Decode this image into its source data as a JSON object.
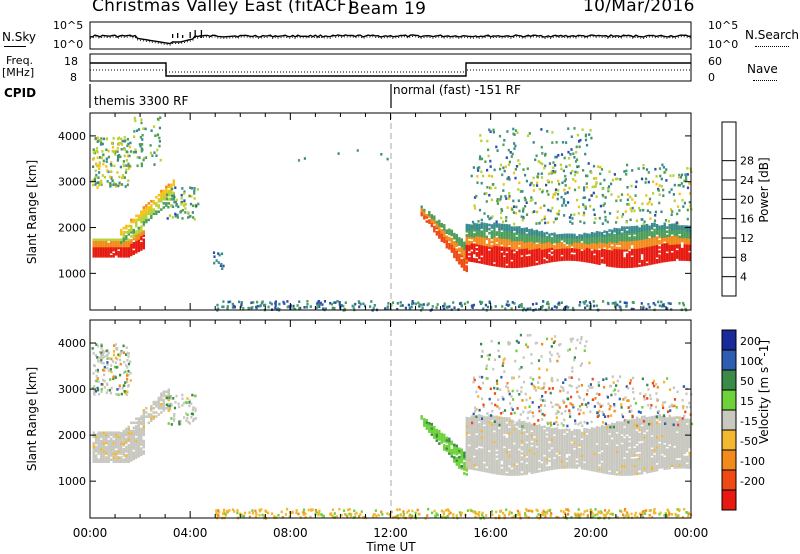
{
  "header": {
    "station": "Christmas Valley East (fitACF)",
    "beam": "Beam 19",
    "date": "10/Mar/2016"
  },
  "sky_panel": {
    "left_label": "N.Sky",
    "right_label": "N.Search",
    "left_ticks": [
      "10^5",
      "10^0"
    ],
    "right_ticks": [
      "10^5",
      "10^0"
    ]
  },
  "freq_panel": {
    "left_label_1": "Freq.",
    "left_label_2": "[MHz]",
    "right_label": "Nave",
    "left_ticks": [
      "18",
      "8"
    ],
    "right_ticks": [
      "60",
      "0"
    ]
  },
  "cpid": {
    "label": "CPID",
    "modes": [
      "themis 3300 RF",
      "normal (fast) -151 RF"
    ]
  },
  "time_axis": {
    "label": "Time UT",
    "ticks": [
      "00:00",
      "04:00",
      "08:00",
      "12:00",
      "16:00",
      "20:00",
      "00:00"
    ]
  },
  "power_panel": {
    "ylabel": "Slant Range [km]",
    "yticks": [
      "1000",
      "2000",
      "3000",
      "4000"
    ],
    "colorbar_label": "Power [dB]",
    "colorbar_ticks": [
      "4",
      "8",
      "12",
      "16",
      "20",
      "24",
      "28"
    ],
    "colors": [
      "#1a1aff",
      "#2c4fa8",
      "#3a8b8b",
      "#4c9e5a",
      "#b8d236",
      "#f6c21a",
      "#f28a1c",
      "#ef4a14",
      "#e61a10"
    ]
  },
  "velocity_panel": {
    "ylabel": "Slant Range [km]",
    "yticks": [
      "1000",
      "2000",
      "3000",
      "4000"
    ],
    "colorbar_label": "Velocity [m s^-1]",
    "colorbar_ticks": [
      "200",
      "100",
      "50",
      "15",
      "-15",
      "-50",
      "-100",
      "-200"
    ],
    "colors": [
      "#1a2a9a",
      "#2d5db0",
      "#3b8a4a",
      "#6ed23a",
      "#c8c8c0",
      "#f2b830",
      "#f28a1c",
      "#ef4a14",
      "#e61a10"
    ]
  },
  "chart_data": [
    {
      "type": "heatmap",
      "title": "Power",
      "xlabel": "Time UT",
      "ylabel": "Slant Range [km]",
      "xlim": [
        0,
        24
      ],
      "ylim": [
        200,
        4500
      ],
      "colorbar": {
        "label": "Power [dB]",
        "range": [
          0,
          32
        ]
      },
      "features": [
        {
          "t_start": 0.0,
          "t_end": 2.2,
          "range_km": [
            1400,
            1900
          ],
          "power_db": 27
        },
        {
          "t_start": 1.5,
          "t_end": 3.5,
          "range_km": [
            1800,
            2800
          ],
          "power_db": 16
        },
        {
          "t_start": 0.0,
          "t_end": 1.5,
          "range_km": [
            3000,
            4000
          ],
          "power_db": 12
        },
        {
          "t_start": 13.2,
          "t_end": 15.0,
          "range_km": [
            1000,
            2300
          ],
          "power_db": 22
        },
        {
          "t_start": 15.0,
          "t_end": 24.0,
          "range_km": [
            1300,
            2000
          ],
          "power_db": 27
        },
        {
          "t_start": 15.5,
          "t_end": 24.0,
          "range_km": [
            2300,
            3500
          ],
          "power_db": 10
        }
      ]
    },
    {
      "type": "heatmap",
      "title": "Velocity",
      "xlabel": "Time UT",
      "ylabel": "Slant Range [km]",
      "xlim": [
        0,
        24
      ],
      "ylim": [
        200,
        4500
      ],
      "colorbar": {
        "label": "Velocity [m s^-1]",
        "range": [
          -200,
          200
        ]
      },
      "features": [
        {
          "t_start": 0.0,
          "t_end": 2.2,
          "range_km": [
            1400,
            2100
          ],
          "velocity_ms": 0
        },
        {
          "t_start": 13.2,
          "t_end": 15.0,
          "range_km": [
            1100,
            2100
          ],
          "velocity_ms": 40
        },
        {
          "t_start": 15.0,
          "t_end": 24.0,
          "range_km": [
            1300,
            2300
          ],
          "velocity_ms": 0
        }
      ]
    }
  ]
}
